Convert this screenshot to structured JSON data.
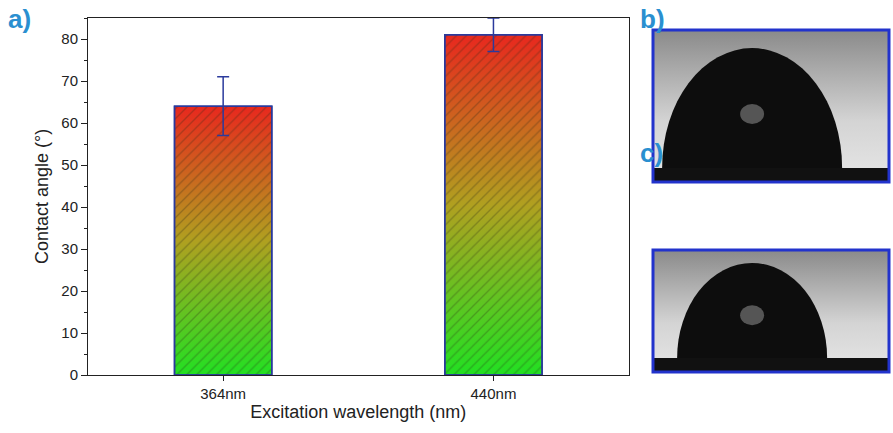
{
  "chart_data": {
    "type": "bar",
    "x_label": "Excitation wavelength (nm)",
    "y_label": "Contact angle (°)",
    "categories": [
      "364nm",
      "440nm"
    ],
    "values": [
      64,
      81
    ],
    "errors": [
      7,
      4
    ],
    "color": "#e8281e",
    "ylim": [
      0,
      85
    ],
    "yticks": [
      0,
      10,
      20,
      30,
      40,
      50,
      60,
      70,
      80
    ],
    "grid": false
  },
  "panel_labels": {
    "a": "a)",
    "b": "b)",
    "c": "c)"
  }
}
